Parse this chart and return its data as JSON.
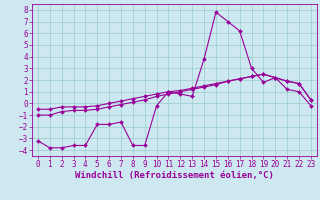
{
  "xlabel": "Windchill (Refroidissement éolien,°C)",
  "bg_color": "#cde8f0",
  "line_color": "#990099",
  "grid_color": "#99cccc",
  "xlim": [
    -0.5,
    23.5
  ],
  "ylim": [
    -4.5,
    8.5
  ],
  "xticks": [
    0,
    1,
    2,
    3,
    4,
    5,
    6,
    7,
    8,
    9,
    10,
    11,
    12,
    13,
    14,
    15,
    16,
    17,
    18,
    19,
    20,
    21,
    22,
    23
  ],
  "yticks": [
    -4,
    -3,
    -2,
    -1,
    0,
    1,
    2,
    3,
    4,
    5,
    6,
    7,
    8
  ],
  "line1_x": [
    0,
    1,
    2,
    3,
    4,
    5,
    6,
    7,
    8,
    9,
    10,
    11,
    12,
    13,
    14,
    15,
    16,
    17,
    18,
    19,
    20,
    21,
    22,
    23
  ],
  "line1_y": [
    -3.2,
    -3.8,
    -3.8,
    -3.6,
    -3.6,
    -1.8,
    -1.8,
    -1.6,
    -3.6,
    -3.6,
    -0.2,
    1.0,
    0.8,
    0.6,
    3.8,
    7.8,
    7.0,
    6.2,
    3.0,
    1.8,
    2.2,
    1.2,
    1.0,
    -0.2
  ],
  "line2_x": [
    0,
    1,
    2,
    3,
    4,
    5,
    6,
    7,
    8,
    9,
    10,
    11,
    12,
    13,
    14,
    15,
    16,
    17,
    18,
    19,
    20,
    21,
    22,
    23
  ],
  "line2_y": [
    -0.5,
    -0.5,
    -0.3,
    -0.3,
    -0.3,
    -0.2,
    0.0,
    0.2,
    0.4,
    0.6,
    0.8,
    1.0,
    1.1,
    1.3,
    1.5,
    1.7,
    1.9,
    2.1,
    2.3,
    2.5,
    2.2,
    1.9,
    1.7,
    0.3
  ],
  "line3_x": [
    0,
    1,
    2,
    3,
    4,
    5,
    6,
    7,
    8,
    9,
    10,
    11,
    12,
    13,
    14,
    15,
    16,
    17,
    18,
    19,
    20,
    21,
    22,
    23
  ],
  "line3_y": [
    -1.0,
    -1.0,
    -0.7,
    -0.6,
    -0.6,
    -0.5,
    -0.3,
    -0.1,
    0.1,
    0.3,
    0.6,
    0.8,
    1.0,
    1.2,
    1.4,
    1.6,
    1.9,
    2.1,
    2.3,
    2.5,
    2.2,
    1.9,
    1.7,
    0.3
  ],
  "tick_fontsize": 5.5,
  "xlabel_fontsize": 6.5,
  "marker": "D",
  "marker_size": 2.0,
  "line_width": 0.8
}
